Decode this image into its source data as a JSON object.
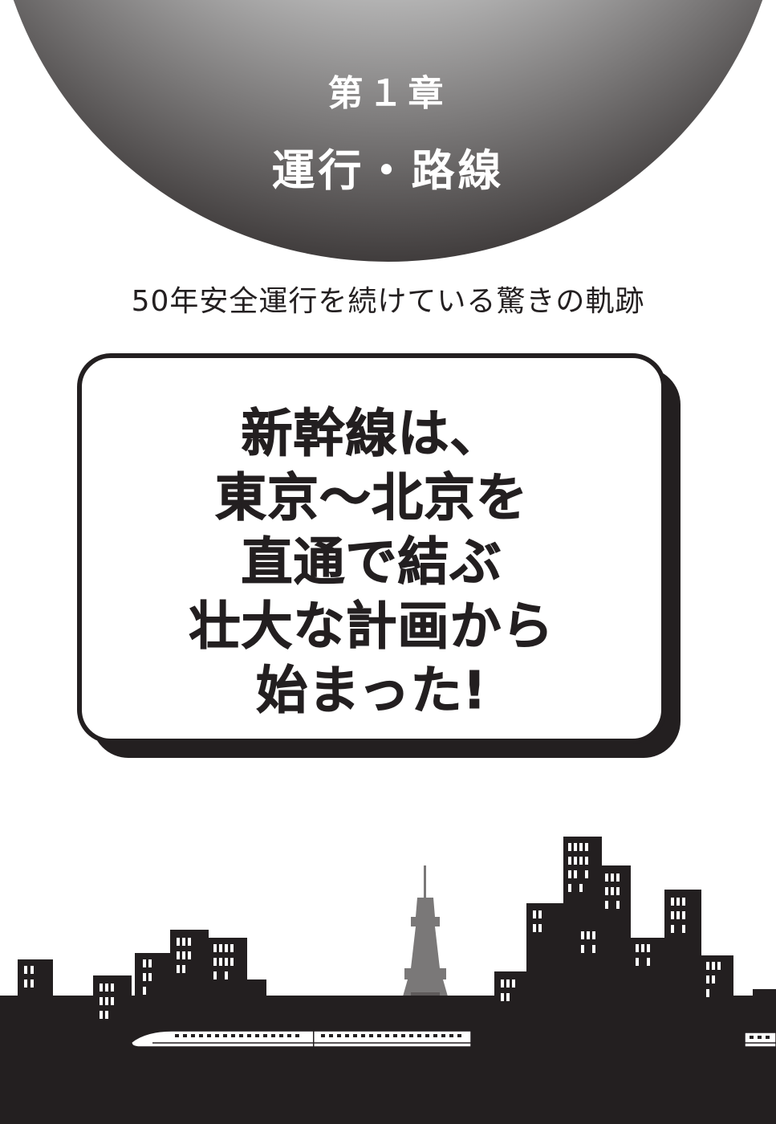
{
  "chapter": {
    "label": "第１章",
    "title": "運行・路線"
  },
  "subtitle": "50年安全運行を続けている驚きの軌跡",
  "headline": {
    "lines": [
      "新幹線は、",
      "東京～北京を",
      "直通で結ぶ",
      "壮大な計画から",
      "始まった!"
    ]
  },
  "colors": {
    "ink": "#231f20",
    "tower": "#7a7878",
    "paper": "#ffffff"
  },
  "illustration": {
    "elements": [
      "city-skyline",
      "tokyo-tower",
      "shinkansen-train"
    ]
  }
}
